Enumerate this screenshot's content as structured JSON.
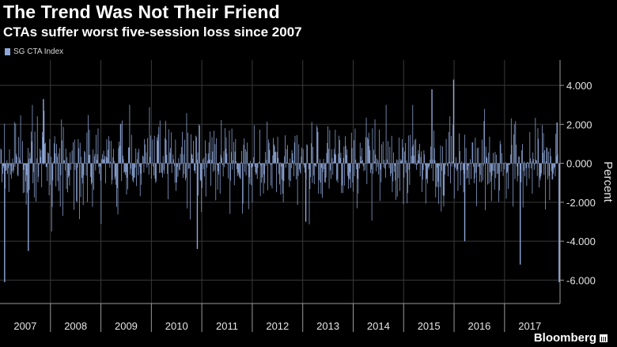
{
  "header": {
    "title": "The Trend Was Not Their Friend",
    "subtitle": "CTAs suffer worst five-session loss since 2007"
  },
  "legend": {
    "label": "SG CTA Index",
    "color": "#8fa7d8"
  },
  "branding": {
    "name": "Bloomberg"
  },
  "chart_data": {
    "type": "bar",
    "title": "The Trend Was Not Their Friend",
    "subtitle": "CTAs suffer worst five-session loss since 2007",
    "ylabel": "Percent",
    "xlabel": "",
    "ylim": [
      -7.2,
      5.3
    ],
    "yticks": [
      4,
      2,
      0,
      -2,
      -4,
      -6
    ],
    "ytick_labels": [
      "4.000",
      "2.000",
      "0.000",
      "-2.000",
      "-4.000",
      "-6.000"
    ],
    "x_categories": [
      "2007",
      "2008",
      "2009",
      "2010",
      "2011",
      "2012",
      "2013",
      "2014",
      "2015",
      "2016",
      "2017"
    ],
    "x_range": [
      2007.0,
      2018.1
    ],
    "grid": true,
    "legend_position": "top-left",
    "series": [
      {
        "name": "SG CTA Index",
        "color": "#8fa7d8",
        "notable_points": [
          {
            "x": 2007.08,
            "y": -6.1
          },
          {
            "x": 2007.55,
            "y": -4.5
          },
          {
            "x": 2007.85,
            "y": 3.3
          },
          {
            "x": 2010.9,
            "y": -4.4
          },
          {
            "x": 2013.05,
            "y": -3.0
          },
          {
            "x": 2015.55,
            "y": 3.8
          },
          {
            "x": 2015.98,
            "y": 4.3
          },
          {
            "x": 2016.2,
            "y": -4.0
          },
          {
            "x": 2017.3,
            "y": -5.2
          },
          {
            "x": 2018.03,
            "y": 2.1
          },
          {
            "x": 2018.07,
            "y": -6.1
          }
        ]
      }
    ]
  }
}
